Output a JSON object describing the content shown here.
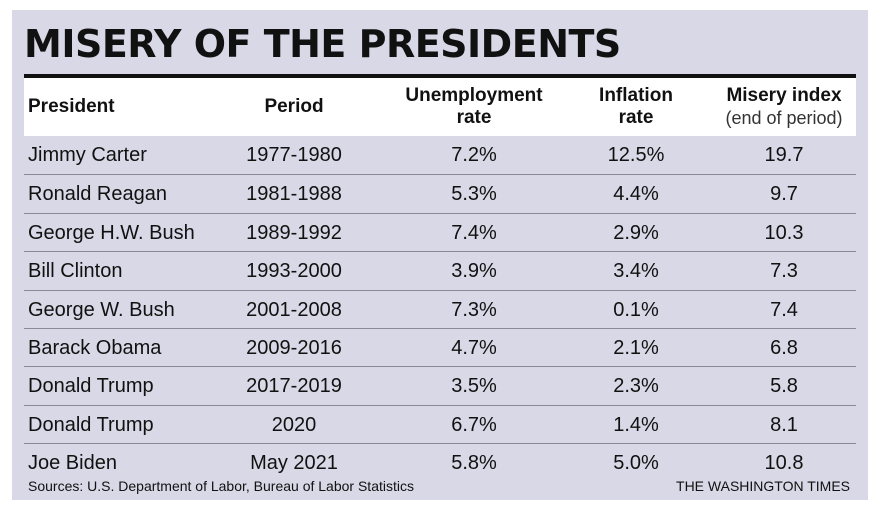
{
  "title": "MISERY OF THE PRESIDENTS",
  "headers": {
    "president": "President",
    "period": "Period",
    "unemployment_line1": "Unemployment",
    "unemployment_line2": "rate",
    "inflation_line1": "Inflation",
    "inflation_line2": "rate",
    "misery_line1": "Misery index",
    "misery_line2": "(end of period)"
  },
  "rows": [
    {
      "president": "Jimmy Carter",
      "period": "1977-1980",
      "unemployment": "7.2%",
      "inflation": "12.5%",
      "misery": "19.7"
    },
    {
      "president": "Ronald Reagan",
      "period": "1981-1988",
      "unemployment": "5.3%",
      "inflation": "4.4%",
      "misery": "9.7"
    },
    {
      "president": "George H.W. Bush",
      "period": "1989-1992",
      "unemployment": "7.4%",
      "inflation": "2.9%",
      "misery": "10.3"
    },
    {
      "president": "Bill Clinton",
      "period": "1993-2000",
      "unemployment": "3.9%",
      "inflation": "3.4%",
      "misery": "7.3"
    },
    {
      "president": "George W. Bush",
      "period": "2001-2008",
      "unemployment": "7.3%",
      "inflation": "0.1%",
      "misery": "7.4"
    },
    {
      "president": "Barack Obama",
      "period": "2009-2016",
      "unemployment": "4.7%",
      "inflation": "2.1%",
      "misery": "6.8"
    },
    {
      "president": "Donald Trump",
      "period": "2017-2019",
      "unemployment": "3.5%",
      "inflation": "2.3%",
      "misery": "5.8"
    },
    {
      "president": "Donald Trump",
      "period": "2020",
      "unemployment": "6.7%",
      "inflation": "1.4%",
      "misery": "8.1"
    },
    {
      "president": "Joe Biden",
      "period": "May 2021",
      "unemployment": "5.8%",
      "inflation": "5.0%",
      "misery": "10.8"
    }
  ],
  "footer": {
    "source": "Sources: U.S. Department of Labor, Bureau of Labor Statistics",
    "brand": "THE WASHINGTON TIMES"
  },
  "colors": {
    "background": "#d8d8e6",
    "header_background": "#ffffff",
    "text": "#111111",
    "rule": "#111111"
  }
}
